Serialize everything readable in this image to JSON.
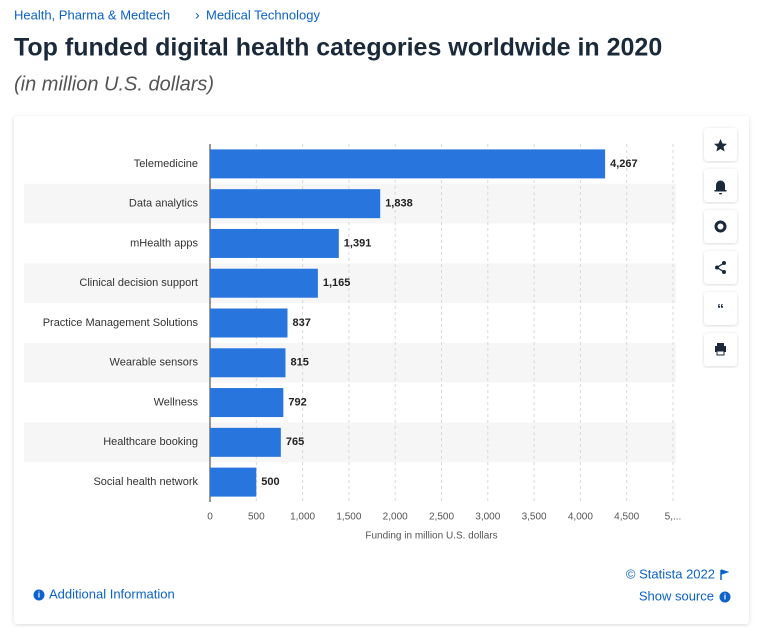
{
  "breadcrumb": [
    "Health, Pharma & Medtech",
    "Medical Technology"
  ],
  "chart_data": {
    "type": "bar",
    "orientation": "horizontal",
    "title": "Top funded digital health categories worldwide in 2020",
    "subtitle": "(in million U.S. dollars)",
    "categories": [
      "Telemedicine",
      "Data analytics",
      "mHealth apps",
      "Clinical decision support",
      "Practice Management Solutions",
      "Wearable sensors",
      "Wellness",
      "Healthcare booking",
      "Social health network"
    ],
    "values": [
      4267,
      1838,
      1391,
      1165,
      837,
      815,
      792,
      765,
      500
    ],
    "value_labels": [
      "4,267",
      "1,838",
      "1,391",
      "1,165",
      "837",
      "815",
      "792",
      "765",
      "500"
    ],
    "color": "#2876dd",
    "xlim": [
      0,
      5000
    ],
    "xticks": [
      0,
      500,
      {
        "value": 1000,
        "label": "1,000"
      },
      {
        "value": 1500,
        "label": "1,500"
      },
      {
        "value": 2000,
        "label": "2,000"
      },
      {
        "value": 2500,
        "label": "2,500"
      },
      {
        "value": 3000,
        "label": "3,000"
      },
      {
        "value": 3500,
        "label": "3,500"
      },
      {
        "value": 4000,
        "label": "4,000"
      },
      {
        "value": 4500,
        "label": "4,500"
      },
      {
        "value": 5000,
        "label": "5,..."
      }
    ],
    "xlabel": "Funding in million U.S. dollars",
    "grid": true
  },
  "footer": {
    "copyright": "© Statista 2022",
    "additional_info": "Additional Information",
    "show_source": "Show source"
  }
}
